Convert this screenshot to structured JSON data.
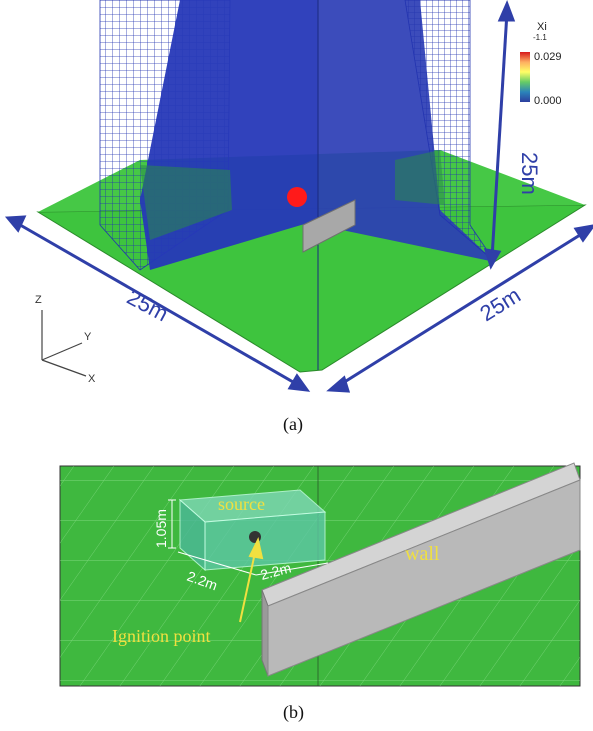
{
  "panel_a": {
    "caption": "(a)",
    "colorbar": {
      "title": "Xi",
      "subtitle": "-1.1",
      "max_label": "0.029",
      "min_label": "0.000",
      "colors": [
        "#d7191c",
        "#fdae61",
        "#ffff66",
        "#66cc66",
        "#2b83ba",
        "#2c3e9e"
      ]
    },
    "dimension_labels": {
      "height": "25m",
      "left_side": "25m",
      "right_side": "25m"
    },
    "axis_labels": {
      "z": "Z",
      "y": "Y",
      "x": "X"
    },
    "colors": {
      "ground": "#3ec43e",
      "mesh": "#1f2fb4",
      "arrow": "#2f3fa8",
      "source": "#ff1a1a",
      "wall": "#a8a8a8"
    }
  },
  "panel_b": {
    "caption": "(b)",
    "labels": {
      "source": "source",
      "wall": "wall",
      "ignition": "Ignition point",
      "height": "1.05m",
      "width": "2.2m",
      "depth": "2.2m"
    },
    "colors": {
      "ground": "#3fb83f",
      "grid": "#8ee08e",
      "label": "#f0e040",
      "wall": "#b9b9b9"
    }
  }
}
